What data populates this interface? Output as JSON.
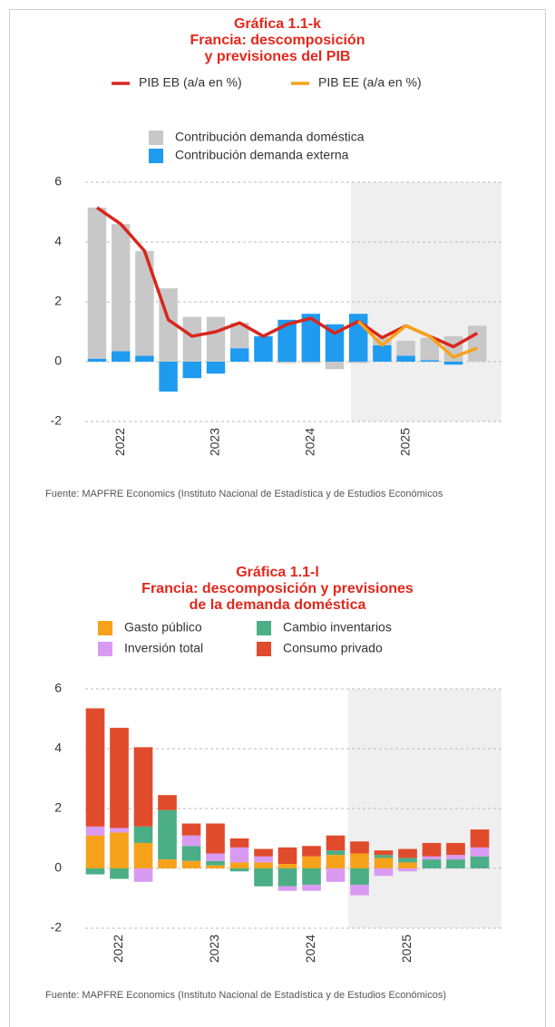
{
  "chart_data": [
    {
      "type": "combo",
      "title": [
        "Gráfica 1.1-k",
        "Francia: descomposición",
        "y previsiones del PIB"
      ],
      "categories": [
        null,
        "2022",
        null,
        null,
        null,
        "2023",
        null,
        null,
        null,
        "2024",
        null,
        null,
        null,
        "2025",
        null,
        null,
        null
      ],
      "series": [
        {
          "name": "PIB EB (a/a en %)",
          "type": "line",
          "color": "#d9261c",
          "values": [
            5.15,
            4.6,
            3.7,
            1.4,
            0.85,
            1.0,
            1.3,
            0.85,
            1.25,
            1.45,
            0.95,
            1.35,
            0.8,
            1.2,
            0.85,
            0.5,
            0.95
          ]
        },
        {
          "name": "PIB EE (a/a en %)",
          "type": "line",
          "color": "#f7a21b",
          "values": [
            null,
            null,
            null,
            null,
            null,
            null,
            null,
            null,
            null,
            null,
            null,
            1.35,
            0.55,
            1.2,
            0.85,
            0.15,
            0.45
          ]
        },
        {
          "name": "Contribución demanda doméstica",
          "type": "bar",
          "color": "#c8c8c8",
          "values": [
            5.05,
            4.25,
            3.5,
            2.45,
            1.5,
            1.5,
            0.85,
            0.0,
            -0.05,
            -0.05,
            -0.25,
            -0.05,
            0.25,
            0.5,
            0.75,
            0.85,
            1.2
          ]
        },
        {
          "name": "Contribución demanda externa",
          "type": "bar",
          "color": "#1f9bf0",
          "values": [
            0.1,
            0.35,
            0.2,
            -1.0,
            -0.55,
            -0.4,
            0.45,
            0.85,
            1.4,
            1.6,
            1.25,
            1.6,
            0.55,
            0.2,
            0.05,
            -0.1,
            0.0
          ]
        }
      ],
      "bar_stack_order": [
        3,
        2
      ],
      "ylim": [
        -2,
        6
      ],
      "yticks": [
        -2,
        0,
        2,
        4,
        6
      ],
      "grid": true,
      "source": "Fuente: MAPFRE Economics (Instituto Nacional de Estadística y de Estudios Económicos"
    },
    {
      "type": "stacked_bar",
      "title": [
        "Gráfica 1.1-l",
        "Francia: descomposición y previsiones",
        "de la demanda doméstica"
      ],
      "categories": [
        null,
        "2022",
        null,
        null,
        null,
        "2023",
        null,
        null,
        null,
        "2024",
        null,
        null,
        null,
        "2025",
        null,
        null,
        null
      ],
      "series": [
        {
          "name": "Gasto público",
          "type": "bar",
          "color": "#f7a21b",
          "values": [
            1.1,
            1.2,
            0.85,
            0.3,
            0.25,
            0.1,
            0.2,
            0.2,
            0.15,
            0.4,
            0.45,
            0.5,
            0.35,
            0.2,
            0.0,
            0.0,
            0.0
          ]
        },
        {
          "name": "Cambio inventarios",
          "type": "bar",
          "color": "#4cae86",
          "values": [
            -0.2,
            -0.35,
            0.55,
            1.65,
            0.5,
            0.15,
            -0.1,
            -0.6,
            -0.6,
            -0.55,
            0.15,
            -0.55,
            0.1,
            0.15,
            0.3,
            0.3,
            0.4
          ]
        },
        {
          "name": "Inversión total",
          "type": "bar",
          "color": "#d99af2",
          "values": [
            0.3,
            0.15,
            -0.45,
            0.0,
            0.35,
            0.25,
            0.5,
            0.2,
            -0.15,
            -0.2,
            -0.45,
            -0.35,
            -0.25,
            -0.1,
            0.1,
            0.15,
            0.3
          ]
        },
        {
          "name": "Consumo privado",
          "type": "bar",
          "color": "#e04b2c",
          "values": [
            3.95,
            3.35,
            2.65,
            0.5,
            0.4,
            1.0,
            0.3,
            0.25,
            0.55,
            0.35,
            0.5,
            0.4,
            0.15,
            0.3,
            0.45,
            0.4,
            0.6
          ]
        }
      ],
      "ylim": [
        -2,
        6
      ],
      "yticks": [
        -2,
        0,
        2,
        4,
        6
      ],
      "grid": true,
      "source": "Fuente: MAPFRE Economics (Instituto Nacional de Estadística y de Estudios Económicos)"
    }
  ]
}
